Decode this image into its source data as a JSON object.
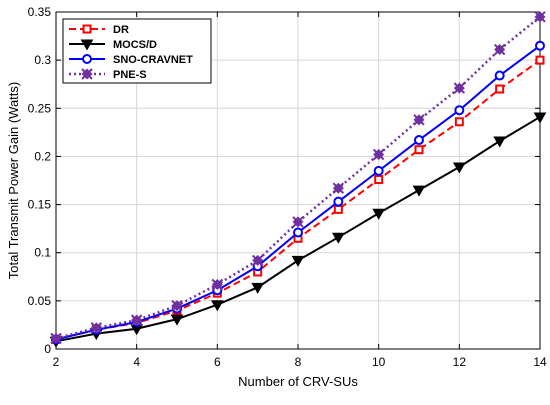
{
  "chart_data": {
    "type": "line",
    "xlabel": "Number of CRV-SUs",
    "ylabel": "Total Transmit Power Gain (Watts)",
    "xlim": [
      2,
      14
    ],
    "ylim": [
      0,
      0.35
    ],
    "xticks": [
      2,
      4,
      6,
      8,
      10,
      12,
      14
    ],
    "xtick_labels": [
      "2",
      "4",
      "6",
      "8",
      "10",
      "12",
      "14"
    ],
    "yticks": [
      0,
      0.05,
      0.1,
      0.15,
      0.2,
      0.25,
      0.3,
      0.35
    ],
    "ytick_labels": [
      "0",
      "0.05",
      "0.1",
      "0.15",
      "0.2",
      "0.25",
      "0.3",
      "0.35"
    ],
    "grid": true,
    "legend_position": "top-left",
    "x": [
      2,
      3,
      4,
      5,
      6,
      7,
      8,
      9,
      10,
      11,
      12,
      13,
      14
    ],
    "series": [
      {
        "name": "DR",
        "color": "#ff0000",
        "line_style": "dashed",
        "marker": "square",
        "values": [
          0.01,
          0.02,
          0.027,
          0.04,
          0.058,
          0.08,
          0.115,
          0.145,
          0.176,
          0.207,
          0.236,
          0.27,
          0.3
        ]
      },
      {
        "name": "MOCS/D",
        "color": "#000000",
        "line_style": "solid",
        "marker": "triangle-down",
        "values": [
          0.008,
          0.016,
          0.021,
          0.031,
          0.046,
          0.064,
          0.092,
          0.116,
          0.141,
          0.165,
          0.189,
          0.216,
          0.241
        ]
      },
      {
        "name": "SNO-CRAVNET",
        "color": "#0000ff",
        "line_style": "solid",
        "marker": "circle",
        "values": [
          0.01,
          0.02,
          0.028,
          0.042,
          0.061,
          0.086,
          0.121,
          0.153,
          0.185,
          0.217,
          0.248,
          0.284,
          0.315
        ]
      },
      {
        "name": "PNE-S",
        "color": "#7030a0",
        "line_style": "dotted",
        "marker": "asterisk",
        "values": [
          0.011,
          0.022,
          0.03,
          0.045,
          0.067,
          0.092,
          0.132,
          0.167,
          0.202,
          0.238,
          0.271,
          0.311,
          0.345
        ]
      }
    ]
  }
}
